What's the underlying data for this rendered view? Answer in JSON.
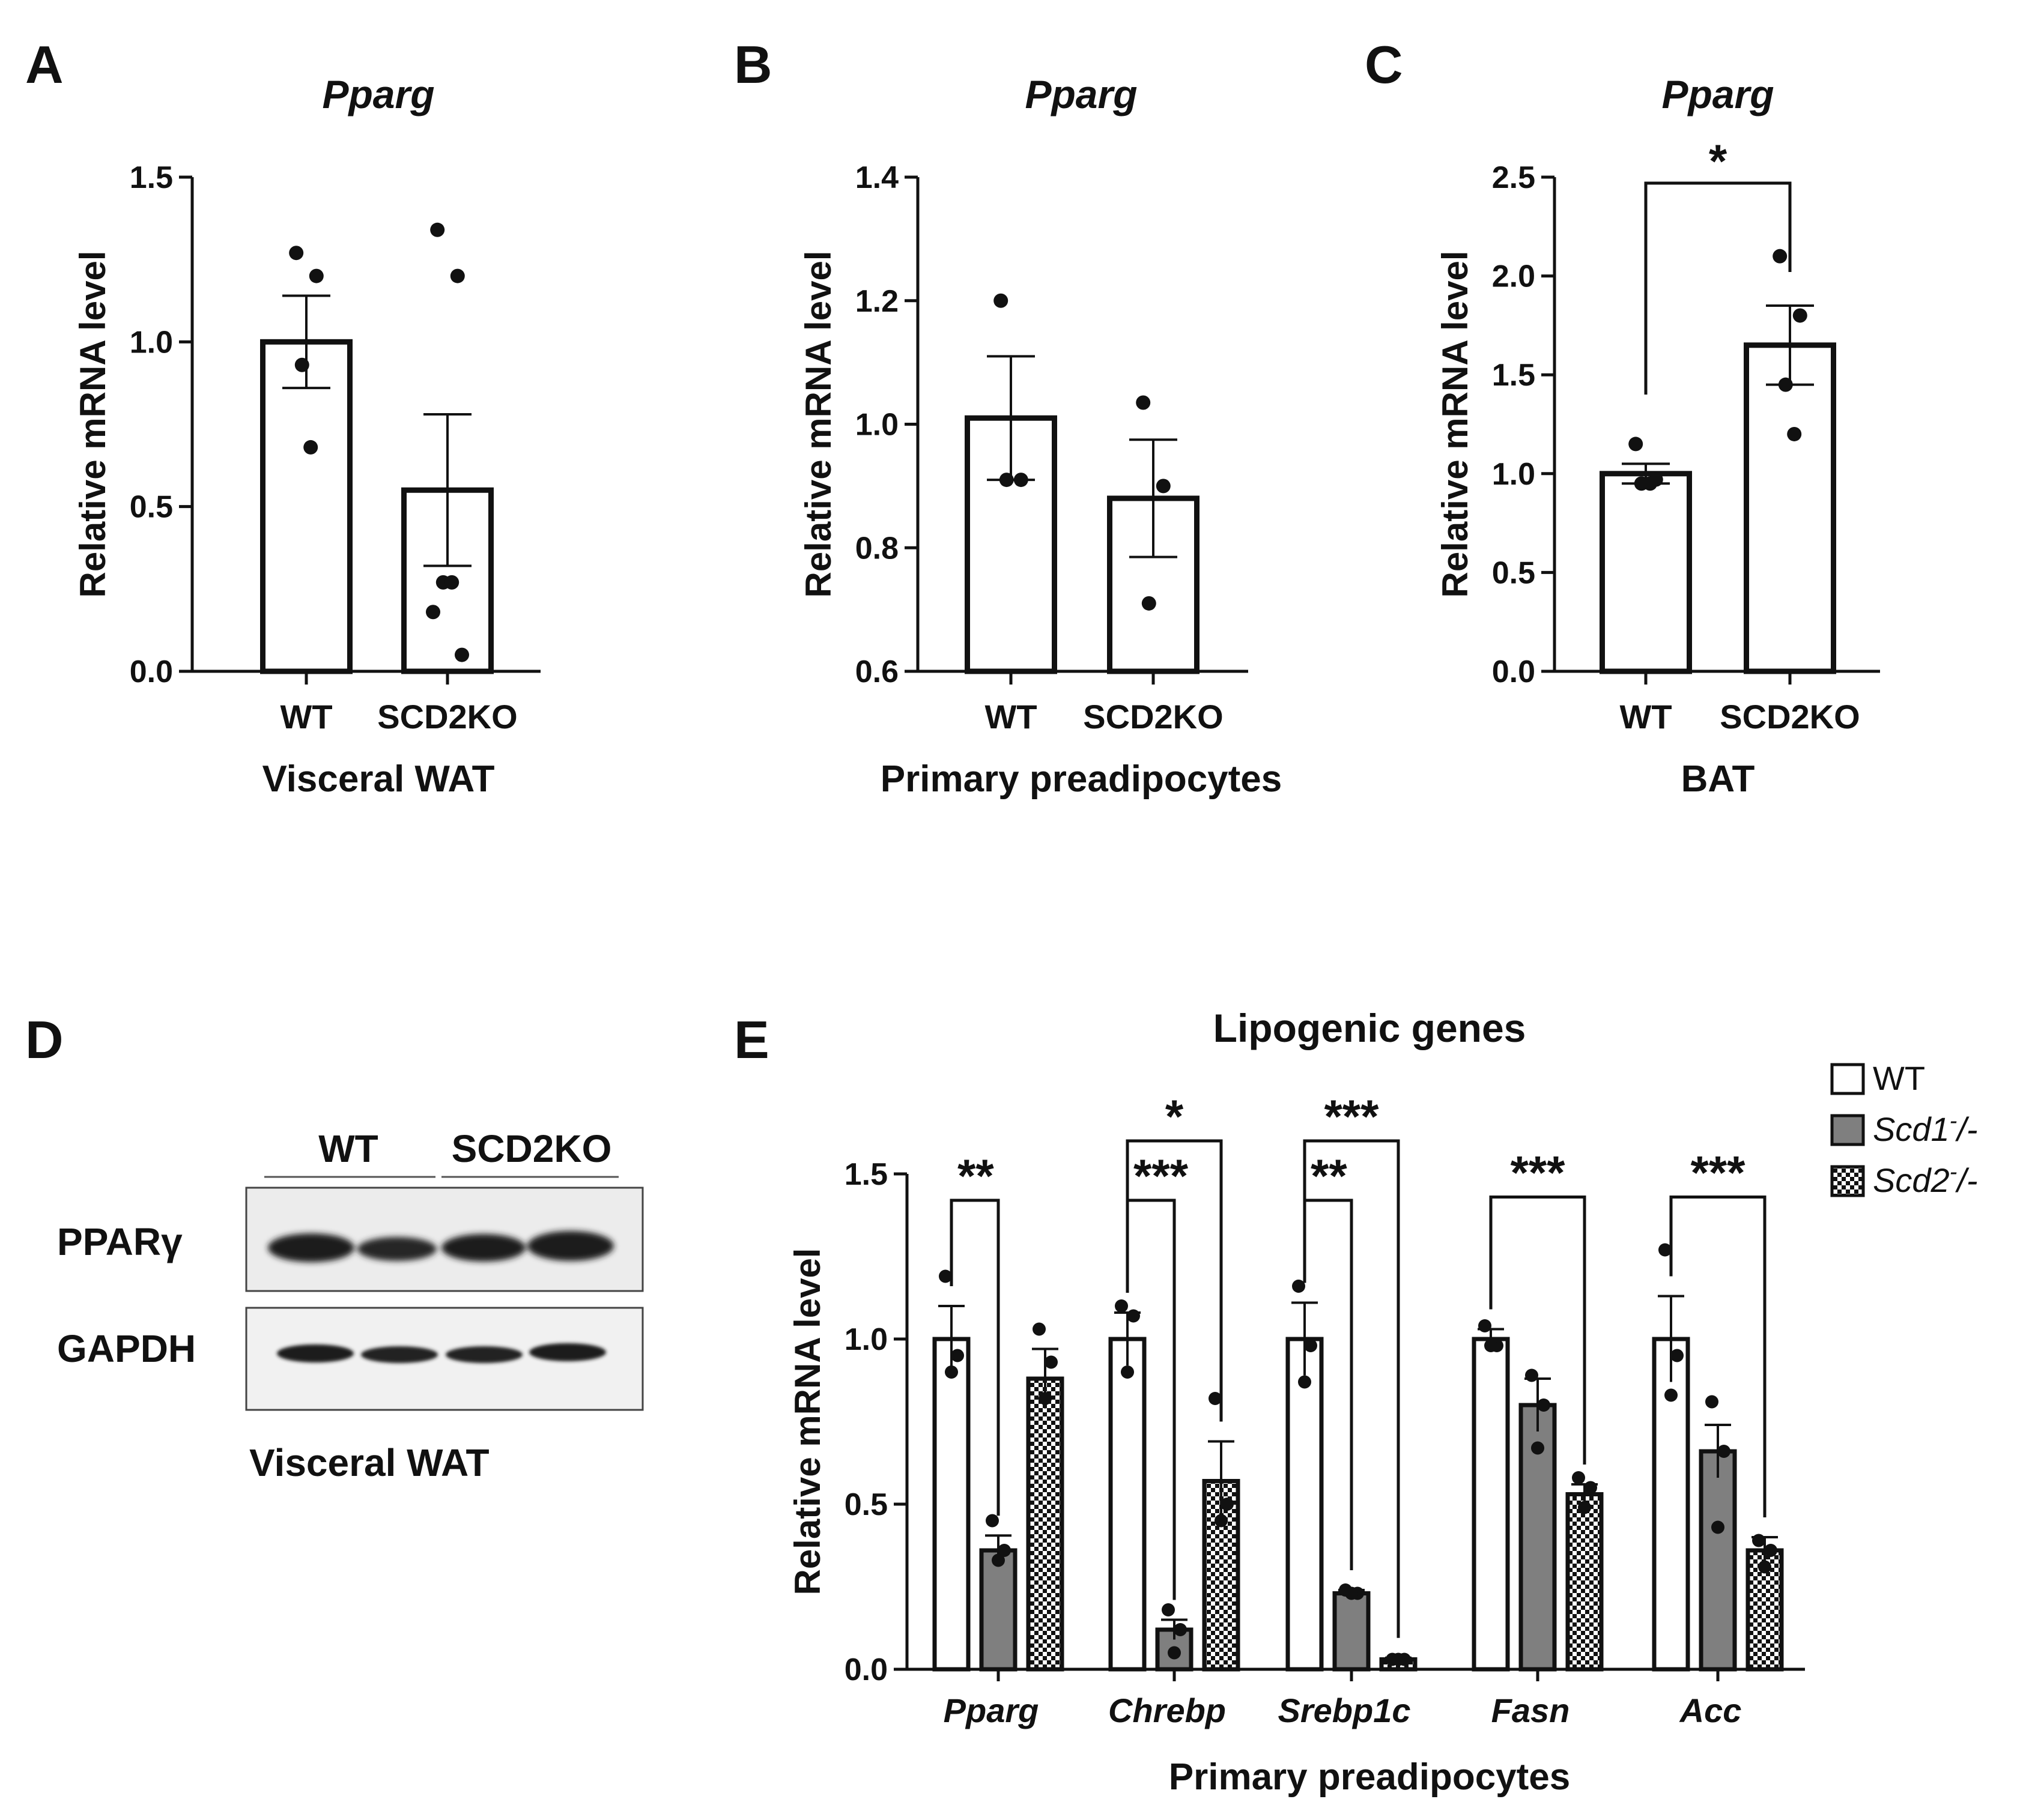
{
  "panel_labels": {
    "a": "A",
    "b": "B",
    "c": "C",
    "d": "D",
    "e": "E"
  },
  "chart_data": [
    {
      "id": "A",
      "type": "bar",
      "title": "Pparg",
      "xlabel": "Visceral WAT",
      "ylabel": "Relative mRNA level",
      "ylim": [
        0,
        1.5
      ],
      "yticks": [
        "0.0",
        "0.5",
        "1.0",
        "1.5"
      ],
      "ytick_values": [
        0,
        0.5,
        1.0,
        1.5
      ],
      "categories": [
        "WT",
        "SCD2KO"
      ],
      "values": [
        1.0,
        0.55
      ],
      "errors": [
        0.14,
        0.23
      ],
      "points": [
        [
          1.27,
          1.2,
          0.93,
          0.68
        ],
        [
          1.34,
          1.2,
          0.27,
          0.27,
          0.18,
          0.05
        ]
      ],
      "significance": []
    },
    {
      "id": "B",
      "type": "bar",
      "title": "Pparg",
      "xlabel": "Primary preadipocytes",
      "ylabel": "Relative mRNA level",
      "ylim": [
        0.6,
        1.4
      ],
      "yticks": [
        "0.6",
        "0.8",
        "1.0",
        "1.2",
        "1.4"
      ],
      "ytick_values": [
        0.6,
        0.8,
        1.0,
        1.2,
        1.4
      ],
      "categories": [
        "WT",
        "SCD2KO"
      ],
      "values": [
        1.01,
        0.88
      ],
      "errors": [
        0.1,
        0.095
      ],
      "points": [
        [
          1.2,
          0.91,
          0.91
        ],
        [
          1.035,
          0.9,
          0.71
        ]
      ],
      "significance": []
    },
    {
      "id": "C",
      "type": "bar",
      "title": "Pparg",
      "xlabel": "BAT",
      "ylabel": "Relative mRNA level",
      "ylim": [
        0,
        2.5
      ],
      "yticks": [
        "0.0",
        "0.5",
        "1.0",
        "1.5",
        "2.0",
        "2.5"
      ],
      "ytick_values": [
        0,
        0.5,
        1.0,
        1.5,
        2.0,
        2.5
      ],
      "categories": [
        "WT",
        "SCD2KO"
      ],
      "values": [
        1.0,
        1.65
      ],
      "errors": [
        0.05,
        0.2
      ],
      "points": [
        [
          1.15,
          0.97,
          0.95,
          0.95
        ],
        [
          2.1,
          1.8,
          1.45,
          1.2
        ]
      ],
      "significance": [
        {
          "from": 0,
          "to": 1,
          "label": "*"
        }
      ]
    },
    {
      "id": "E",
      "type": "bar",
      "title": "Lipogenic genes",
      "xlabel": "Primary preadipocytes",
      "ylabel": "Relative mRNA level",
      "ylim": [
        0,
        1.5
      ],
      "yticks": [
        "0.0",
        "0.5",
        "1.0",
        "1.5"
      ],
      "ytick_values": [
        0,
        0.5,
        1.0,
        1.5
      ],
      "categories": [
        "Pparg",
        "Chrebp",
        "Srebp1c",
        "Fasn",
        "Acc"
      ],
      "legend": {
        "placement": "top-right",
        "entries": [
          {
            "base": "WT",
            "sup": "",
            "tail": "",
            "italic": false
          },
          {
            "base": "Scd1",
            "sup": "-",
            "tail": "/-",
            "italic": true
          },
          {
            "base": "Scd2",
            "sup": "-",
            "tail": "/-",
            "italic": true
          }
        ]
      },
      "series": [
        {
          "name": "WT",
          "values": [
            1.0,
            1.0,
            1.0,
            1.0,
            1.0
          ],
          "errors": [
            0.1,
            0.08,
            0.11,
            0.03,
            0.13
          ],
          "points": [
            [
              1.19,
              0.95,
              0.9
            ],
            [
              1.1,
              1.07,
              0.9
            ],
            [
              1.16,
              0.98,
              0.87
            ],
            [
              1.04,
              0.98,
              0.98
            ],
            [
              1.27,
              0.95,
              0.83
            ]
          ]
        },
        {
          "name": "Scd1-/-",
          "values": [
            0.36,
            0.12,
            0.23,
            0.8,
            0.66
          ],
          "errors": [
            0.045,
            0.03,
            0.01,
            0.08,
            0.08
          ],
          "points": [
            [
              0.45,
              0.36,
              0.33
            ],
            [
              0.18,
              0.12,
              0.05
            ],
            [
              0.24,
              0.23,
              0.23
            ],
            [
              0.89,
              0.8,
              0.67
            ],
            [
              0.81,
              0.66,
              0.43
            ]
          ]
        },
        {
          "name": "Scd2-/-",
          "values": [
            0.88,
            0.57,
            0.03,
            0.53,
            0.36
          ],
          "errors": [
            0.09,
            0.12,
            0.005,
            0.03,
            0.04
          ],
          "points": [
            [
              1.03,
              0.93,
              0.82
            ],
            [
              0.82,
              0.5,
              0.45
            ],
            [
              0.03,
              0.03,
              0.03
            ],
            [
              0.58,
              0.55,
              0.49
            ],
            [
              0.39,
              0.36,
              0.31
            ]
          ]
        }
      ],
      "significance": [
        {
          "category": 0,
          "from": 0,
          "to": 1,
          "label": "**",
          "level": 1.42
        },
        {
          "category": 1,
          "from": 0,
          "to": 1,
          "label": "***",
          "level": 1.42
        },
        {
          "category": 1,
          "from": 0,
          "to": 2,
          "label": "*",
          "level": 1.6
        },
        {
          "category": 2,
          "from": 0,
          "to": 1,
          "label": "**",
          "level": 1.42
        },
        {
          "category": 2,
          "from": 0,
          "to": 2,
          "label": "***",
          "level": 1.6
        },
        {
          "category": 3,
          "from": 0,
          "to": 2,
          "label": "***",
          "level": 1.43
        },
        {
          "category": 4,
          "from": 0,
          "to": 2,
          "label": "***",
          "level": 1.43
        }
      ]
    }
  ],
  "western_blot": {
    "groups": [
      "WT",
      "SCD2KO"
    ],
    "rows": [
      "PPARγ",
      "GAPDH"
    ],
    "caption": "Visceral WAT"
  }
}
